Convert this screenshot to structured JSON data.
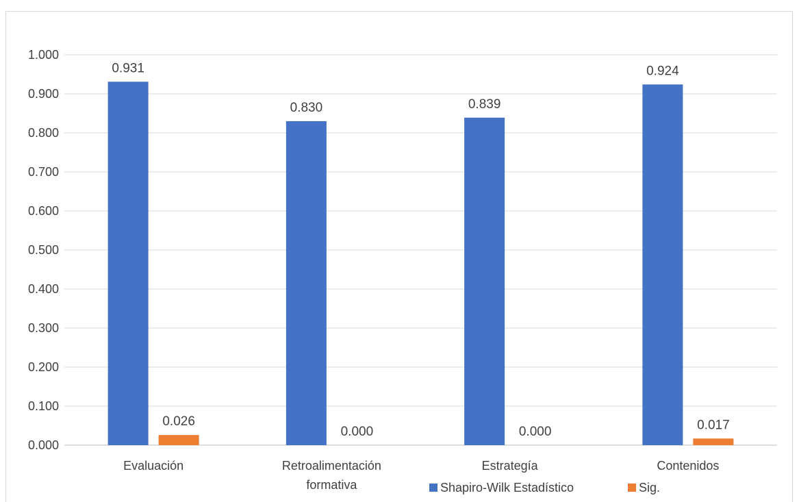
{
  "chart_data": {
    "type": "bar",
    "categories": [
      [
        "Evaluación"
      ],
      [
        "Retroalimentación",
        "formativa"
      ],
      [
        "Estrategía"
      ],
      [
        "Contenidos"
      ]
    ],
    "series": [
      {
        "name": "Shapiro-Wilk Estadístico",
        "color": "#4472C4",
        "values": [
          0.931,
          0.83,
          0.839,
          0.924
        ],
        "labels": [
          "0.931",
          "0.830",
          "0.839",
          "0.924"
        ]
      },
      {
        "name": "Sig.",
        "color": "#ED7D31",
        "values": [
          0.026,
          0.0,
          0.0,
          0.017
        ],
        "labels": [
          "0.026",
          "0.000",
          "0.000",
          "0.017"
        ]
      }
    ],
    "ylim": [
      0,
      1
    ],
    "yticks": [
      "0.000",
      "0.100",
      "0.200",
      "0.300",
      "0.400",
      "0.500",
      "0.600",
      "0.700",
      "0.800",
      "0.900",
      "1.000"
    ],
    "grid": true,
    "legend_position": "bottom-right"
  }
}
